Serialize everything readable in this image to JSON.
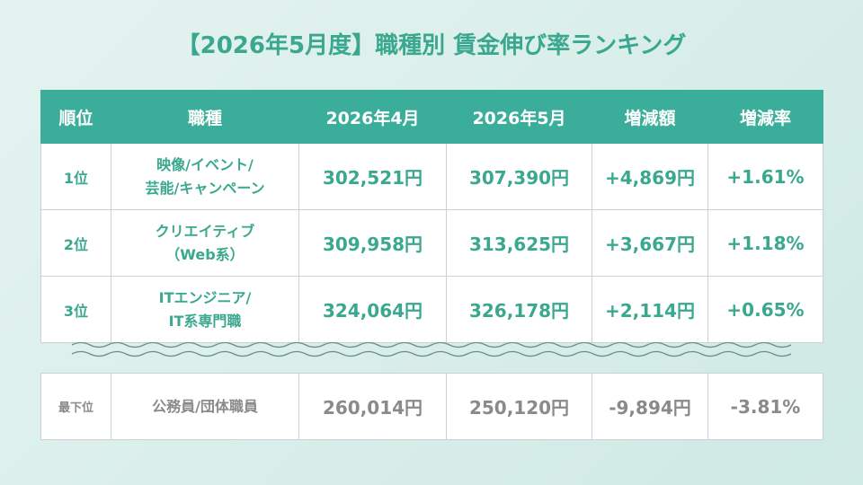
{
  "title": "【2026年5月度】職種別 賃金伸び率ランキング",
  "table": {
    "header": [
      "順位",
      "職種",
      "2026年4月",
      "2026年5月",
      "増減額",
      "増減率"
    ],
    "rows": [
      {
        "rank": "1位",
        "job": [
          "映像/イベント/",
          "芸能/キャンペーン"
        ],
        "apr": "302,521円",
        "may": "307,390円",
        "diff": "+4,869円",
        "rate": "+1.61%"
      },
      {
        "rank": "2位",
        "job": [
          "クリエイティブ",
          "（Web系）"
        ],
        "apr": "309,958円",
        "may": "313,625円",
        "diff": "+3,667円",
        "rate": "+1.18%"
      },
      {
        "rank": "3位",
        "job": [
          "ITエンジニア/",
          "IT系専門職"
        ],
        "apr": "324,064円",
        "may": "326,178円",
        "diff": "+2,114円",
        "rate": "+0.65%"
      }
    ],
    "bottom": {
      "rank": "最下位",
      "job": [
        "公務員/団体職員"
      ],
      "apr": "260,014円",
      "may": "250,120円",
      "diff": "-9,894円",
      "rate": "-3.81%"
    }
  }
}
